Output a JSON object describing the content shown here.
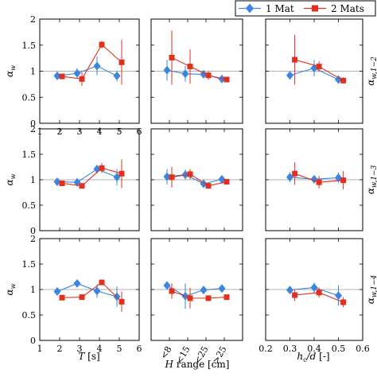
{
  "legend": {
    "position": "top-right",
    "entries": [
      {
        "label": "1 Mat",
        "color": "#3a86e0",
        "marker": "diamond"
      },
      {
        "label": "2 Mats",
        "color": "#e0301e",
        "marker": "square"
      }
    ]
  },
  "row_labels": [
    "α_{w,1−2}",
    "α_{w,1−3}",
    "α_{w,1−4}"
  ],
  "ylabel": "α_w",
  "col_xlabels": [
    {
      "main": "T",
      "unit": " [s]"
    },
    {
      "main": "H",
      "unit": " range [cm]"
    },
    {
      "main": "h_c/d",
      "unit": " [-]"
    }
  ],
  "chart_data": [
    {
      "type": "scatter",
      "row": 0,
      "col": 0,
      "xlim": [
        1,
        6
      ],
      "ylim": [
        0,
        2
      ],
      "reference_line": 1,
      "xticks": [
        "1",
        "2",
        "3",
        "4",
        "5",
        "6"
      ],
      "yticks": [
        "0",
        "0.5",
        "1",
        "1.5",
        "2"
      ],
      "grid": false,
      "series": [
        {
          "name": "1 Mat",
          "x": [
            2,
            3,
            4,
            5
          ],
          "y": [
            0.91,
            0.96,
            1.1,
            0.91
          ],
          "err": [
            0.08,
            0.1,
            0.18,
            0.1
          ]
        },
        {
          "name": "2 Mats",
          "x": [
            2,
            3,
            4,
            5
          ],
          "y": [
            0.9,
            0.85,
            1.51,
            1.17
          ],
          "err": [
            0.05,
            0.13,
            0.07,
            0.43
          ]
        }
      ]
    },
    {
      "type": "scatter",
      "row": 0,
      "col": 1,
      "xlim": [
        0,
        5
      ],
      "ylim": [
        0,
        2
      ],
      "reference_line": 1,
      "xticks": [],
      "yticks": [],
      "grid": false,
      "series": [
        {
          "name": "1 Mat",
          "x": [
            1,
            2,
            3,
            4
          ],
          "y": [
            1.02,
            0.95,
            0.94,
            0.85
          ],
          "err": [
            0.2,
            0.15,
            0.08,
            0.05
          ]
        },
        {
          "name": "2 Mats",
          "x": [
            1,
            2,
            3,
            4
          ],
          "y": [
            1.26,
            1.09,
            0.92,
            0.84
          ],
          "err": [
            0.52,
            0.33,
            0.08,
            0.04
          ]
        }
      ]
    },
    {
      "type": "scatter",
      "row": 0,
      "col": 2,
      "xlim": [
        0.2,
        0.6
      ],
      "ylim": [
        0,
        2
      ],
      "reference_line": 1,
      "xticks": [],
      "yticks": [],
      "grid": false,
      "series": [
        {
          "name": "1 Mat",
          "x": [
            0.3,
            0.4,
            0.5
          ],
          "y": [
            0.92,
            1.06,
            0.84
          ],
          "err": [
            0.06,
            0.16,
            0.08
          ]
        },
        {
          "name": "2 Mats",
          "x": [
            0.32,
            0.42,
            0.52
          ],
          "y": [
            1.22,
            1.09,
            0.82
          ],
          "err": [
            0.48,
            0.1,
            0.06
          ]
        }
      ]
    },
    {
      "type": "scatter",
      "row": 1,
      "col": 0,
      "xlim": [
        1,
        6
      ],
      "ylim": [
        0,
        2
      ],
      "reference_line": 1,
      "xticks": [],
      "yticks": [
        "0",
        "0.5",
        "1",
        "1.5",
        "2"
      ],
      "grid": false,
      "series": [
        {
          "name": "1 Mat",
          "x": [
            2,
            3,
            4,
            5
          ],
          "y": [
            0.96,
            0.95,
            1.21,
            1.05
          ],
          "err": [
            0.04,
            0.04,
            0.08,
            0.16
          ]
        },
        {
          "name": "2 Mats",
          "x": [
            2,
            3,
            4,
            5
          ],
          "y": [
            0.93,
            0.88,
            1.23,
            1.12
          ],
          "err": [
            0.04,
            0.04,
            0.1,
            0.28
          ]
        }
      ]
    },
    {
      "type": "scatter",
      "row": 1,
      "col": 1,
      "xlim": [
        0,
        5
      ],
      "ylim": [
        0,
        2
      ],
      "reference_line": 1,
      "xticks": [],
      "yticks": [],
      "grid": false,
      "series": [
        {
          "name": "1 Mat",
          "x": [
            1,
            2,
            3,
            4
          ],
          "y": [
            1.06,
            1.1,
            0.92,
            1.01
          ],
          "err": [
            0.15,
            0.1,
            0.06,
            0.04
          ]
        },
        {
          "name": "2 Mats",
          "x": [
            1,
            2,
            3,
            4
          ],
          "y": [
            1.05,
            1.11,
            0.88,
            0.96
          ],
          "err": [
            0.2,
            0.1,
            0.04,
            0.05
          ]
        }
      ]
    },
    {
      "type": "scatter",
      "row": 1,
      "col": 2,
      "xlim": [
        0.2,
        0.6
      ],
      "ylim": [
        0,
        2
      ],
      "reference_line": 1,
      "xticks": [],
      "yticks": [],
      "grid": false,
      "series": [
        {
          "name": "1 Mat",
          "x": [
            0.3,
            0.4,
            0.5
          ],
          "y": [
            1.05,
            1.01,
            1.04
          ],
          "err": [
            0.1,
            0.06,
            0.1
          ]
        },
        {
          "name": "2 Mats",
          "x": [
            0.32,
            0.42,
            0.52
          ],
          "y": [
            1.12,
            0.95,
            0.99
          ],
          "err": [
            0.22,
            0.12,
            0.18
          ]
        }
      ]
    },
    {
      "type": "scatter",
      "row": 2,
      "col": 0,
      "xlim": [
        1,
        6
      ],
      "ylim": [
        0,
        2
      ],
      "reference_line": 1,
      "xticks": [
        "1",
        "2",
        "3",
        "4",
        "5",
        "6"
      ],
      "yticks": [
        "0",
        "0.5",
        "1",
        "1.5",
        "2"
      ],
      "grid": false,
      "series": [
        {
          "name": "1 Mat",
          "x": [
            2,
            3,
            4,
            5
          ],
          "y": [
            0.96,
            1.12,
            0.97,
            0.86
          ],
          "err": [
            0.04,
            0.05,
            0.13,
            0.2
          ]
        },
        {
          "name": "2 Mats",
          "x": [
            2,
            3,
            4,
            5
          ],
          "y": [
            0.84,
            0.85,
            1.14,
            0.76
          ],
          "err": [
            0.03,
            0.03,
            0.05,
            0.2
          ]
        }
      ]
    },
    {
      "type": "scatter",
      "row": 2,
      "col": 1,
      "xlim": [
        0,
        5
      ],
      "ylim": [
        0,
        2
      ],
      "reference_line": 1,
      "xticks": [
        "<8",
        "<15",
        "<25",
        ">25"
      ],
      "yticks": [],
      "grid": false,
      "series": [
        {
          "name": "1 Mat",
          "x": [
            1,
            2,
            3,
            4
          ],
          "y": [
            1.08,
            0.87,
            0.99,
            1.02
          ],
          "err": [
            0.05,
            0.25,
            0.05,
            0.05
          ]
        },
        {
          "name": "2 Mats",
          "x": [
            1,
            2,
            3,
            4
          ],
          "y": [
            0.97,
            0.83,
            0.83,
            0.85
          ],
          "err": [
            0.15,
            0.2,
            0.05,
            0.04
          ]
        }
      ]
    },
    {
      "type": "scatter",
      "row": 2,
      "col": 2,
      "xlim": [
        0.2,
        0.6
      ],
      "ylim": [
        0,
        2
      ],
      "reference_line": 1,
      "xticks": [
        "0.2",
        "0.3",
        "0.4",
        "0.5",
        "0.6"
      ],
      "yticks": [],
      "grid": false,
      "series": [
        {
          "name": "1 Mat",
          "x": [
            0.3,
            0.4,
            0.5
          ],
          "y": [
            0.99,
            1.04,
            0.88
          ],
          "err": [
            0.06,
            0.1,
            0.2
          ]
        },
        {
          "name": "2 Mats",
          "x": [
            0.32,
            0.42,
            0.52
          ],
          "y": [
            0.89,
            0.94,
            0.75
          ],
          "err": [
            0.12,
            0.1,
            0.1
          ]
        }
      ]
    }
  ]
}
